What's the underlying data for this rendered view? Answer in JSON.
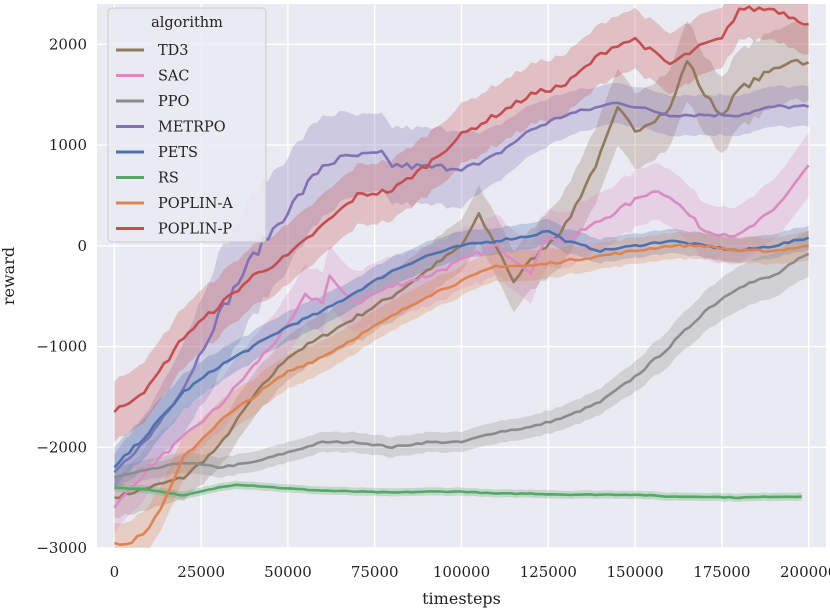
{
  "chart_data": {
    "type": "line",
    "title": "",
    "xlabel": "timesteps",
    "ylabel": "reward",
    "xlim": [
      -5000,
      205000
    ],
    "ylim": [
      -3000,
      2400
    ],
    "xticks": [
      0,
      25000,
      50000,
      75000,
      100000,
      125000,
      150000,
      175000,
      200000
    ],
    "yticks": [
      -3000,
      -2000,
      -1000,
      0,
      1000,
      2000
    ],
    "xtick_labels": [
      "0",
      "25000",
      "50000",
      "75000",
      "100000",
      "125000",
      "150000",
      "175000",
      "200000"
    ],
    "ytick_labels": [
      "−3000",
      "−2000",
      "−1000",
      "0",
      "1000",
      "2000"
    ],
    "grid": true,
    "legend_title": "algorithm",
    "legend_position": "top-left",
    "series": [
      {
        "name": "TD3",
        "color": "#937860",
        "x": [
          0,
          10000,
          20000,
          30000,
          40000,
          50000,
          60000,
          70000,
          80000,
          90000,
          100000,
          105000,
          110000,
          115000,
          120000,
          130000,
          140000,
          145000,
          150000,
          160000,
          165000,
          170000,
          175000,
          180000,
          190000,
          195000,
          200000
        ],
        "y": [
          -2500,
          -2400,
          -2300,
          -2000,
          -1500,
          -1100,
          -900,
          -700,
          -500,
          -250,
          0,
          300,
          0,
          -350,
          -150,
          200,
          900,
          1350,
          1150,
          1350,
          1850,
          1500,
          1300,
          1550,
          1750,
          1850,
          1820
        ],
        "band": [
          200,
          220,
          220,
          220,
          220,
          220,
          220,
          250,
          250,
          250,
          260,
          280,
          300,
          300,
          300,
          350,
          380,
          380,
          380,
          380,
          400,
          380,
          380,
          380,
          380,
          380,
          380
        ]
      },
      {
        "name": "SAC",
        "color": "#da8bc3",
        "x": [
          0,
          10000,
          20000,
          30000,
          40000,
          50000,
          55000,
          60000,
          62000,
          65000,
          70000,
          80000,
          90000,
          100000,
          110000,
          120000,
          125000,
          130000,
          140000,
          150000,
          155000,
          160000,
          170000,
          180000,
          190000,
          200000
        ],
        "y": [
          -2600,
          -2200,
          -1900,
          -1600,
          -1200,
          -800,
          -500,
          -550,
          -300,
          -450,
          -550,
          -400,
          -300,
          -150,
          0,
          -250,
          100,
          50,
          250,
          450,
          550,
          500,
          150,
          100,
          350,
          800
        ],
        "band": [
          250,
          250,
          250,
          260,
          280,
          300,
          300,
          300,
          300,
          300,
          300,
          300,
          300,
          300,
          300,
          300,
          280,
          280,
          280,
          280,
          280,
          280,
          280,
          280,
          300,
          320
        ]
      },
      {
        "name": "PPO",
        "color": "#8c8c8c",
        "x": [
          0,
          20000,
          30000,
          40000,
          50000,
          60000,
          70000,
          80000,
          90000,
          100000,
          110000,
          120000,
          130000,
          140000,
          150000,
          160000,
          170000,
          180000,
          190000,
          200000
        ],
        "y": [
          -2300,
          -2150,
          -2200,
          -2150,
          -2050,
          -1950,
          -1950,
          -2000,
          -1950,
          -1950,
          -1850,
          -1800,
          -1700,
          -1550,
          -1300,
          -1000,
          -650,
          -400,
          -300,
          -80
        ],
        "band": [
          100,
          100,
          100,
          100,
          100,
          100,
          100,
          100,
          100,
          100,
          110,
          110,
          120,
          130,
          150,
          180,
          200,
          220,
          220,
          230
        ]
      },
      {
        "name": "METRPO",
        "color": "#8172b3",
        "x": [
          0,
          10000,
          20000,
          30000,
          40000,
          50000,
          60000,
          65000,
          70000,
          77000,
          80000,
          90000,
          100000,
          105000,
          110000,
          120000,
          130000,
          140000,
          145000,
          150000,
          160000,
          170000,
          180000,
          190000,
          200000
        ],
        "y": [
          -2250,
          -1900,
          -1400,
          -700,
          -100,
          350,
          800,
          860,
          890,
          910,
          800,
          780,
          780,
          800,
          900,
          1150,
          1300,
          1380,
          1430,
          1380,
          1300,
          1300,
          1300,
          1380,
          1380
        ],
        "band": [
          180,
          280,
          450,
          600,
          600,
          550,
          500,
          450,
          400,
          380,
          380,
          380,
          380,
          300,
          280,
          250,
          220,
          200,
          200,
          200,
          200,
          200,
          200,
          200,
          200
        ]
      },
      {
        "name": "PETS",
        "color": "#4c72b0",
        "x": [
          0,
          10000,
          20000,
          30000,
          40000,
          50000,
          60000,
          70000,
          80000,
          90000,
          100000,
          110000,
          120000,
          125000,
          130000,
          140000,
          150000,
          160000,
          170000,
          180000,
          190000,
          200000
        ],
        "y": [
          -2200,
          -1850,
          -1450,
          -1200,
          -1000,
          -800,
          -650,
          -450,
          -250,
          -100,
          0,
          50,
          100,
          150,
          50,
          -50,
          0,
          50,
          0,
          -50,
          0,
          80
        ],
        "band": [
          200,
          200,
          180,
          160,
          150,
          150,
          150,
          140,
          140,
          140,
          140,
          130,
          130,
          120,
          120,
          120,
          120,
          120,
          120,
          120,
          120,
          120
        ]
      },
      {
        "name": "RS",
        "color": "#55a868",
        "x": [
          0,
          10000,
          20000,
          30000,
          35000,
          40000,
          50000,
          60000,
          70000,
          80000,
          90000,
          100000,
          110000,
          120000,
          130000,
          140000,
          150000,
          160000,
          170000,
          180000,
          190000,
          198000
        ],
        "y": [
          -2400,
          -2420,
          -2480,
          -2400,
          -2370,
          -2380,
          -2410,
          -2430,
          -2440,
          -2450,
          -2440,
          -2440,
          -2460,
          -2460,
          -2470,
          -2470,
          -2470,
          -2490,
          -2490,
          -2500,
          -2490,
          -2490
        ],
        "band": [
          40,
          40,
          40,
          40,
          40,
          40,
          40,
          40,
          40,
          40,
          40,
          40,
          40,
          40,
          40,
          40,
          40,
          40,
          40,
          40,
          40,
          40
        ]
      },
      {
        "name": "POPLIN-A",
        "color": "#dd8452",
        "x": [
          0,
          5000,
          10000,
          15000,
          20000,
          30000,
          40000,
          50000,
          60000,
          70000,
          80000,
          90000,
          100000,
          110000,
          120000,
          130000,
          140000,
          150000,
          160000,
          170000,
          180000,
          190000,
          200000
        ],
        "y": [
          -2950,
          -2950,
          -2800,
          -2500,
          -2100,
          -1750,
          -1500,
          -1250,
          -1100,
          -900,
          -700,
          -500,
          -350,
          -200,
          -200,
          -150,
          -100,
          -50,
          0,
          0,
          -50,
          -50,
          0
        ],
        "band": [
          200,
          220,
          220,
          220,
          220,
          200,
          180,
          170,
          160,
          150,
          150,
          150,
          150,
          150,
          150,
          140,
          130,
          130,
          130,
          130,
          130,
          130,
          150
        ]
      },
      {
        "name": "POPLIN-P",
        "color": "#c44e52",
        "x": [
          0,
          10000,
          20000,
          30000,
          40000,
          50000,
          60000,
          70000,
          80000,
          90000,
          100000,
          110000,
          120000,
          130000,
          140000,
          145000,
          150000,
          160000,
          170000,
          175000,
          180000,
          190000,
          200000
        ],
        "y": [
          -1650,
          -1400,
          -900,
          -600,
          -300,
          -100,
          200,
          500,
          550,
          800,
          1100,
          1300,
          1500,
          1600,
          1900,
          2000,
          2050,
          1800,
          2000,
          2050,
          2350,
          2350,
          2200
        ],
        "band": [
          300,
          300,
          300,
          300,
          300,
          300,
          300,
          300,
          300,
          300,
          300,
          300,
          300,
          300,
          300,
          300,
          300,
          300,
          300,
          300,
          300,
          300,
          300
        ]
      }
    ]
  }
}
